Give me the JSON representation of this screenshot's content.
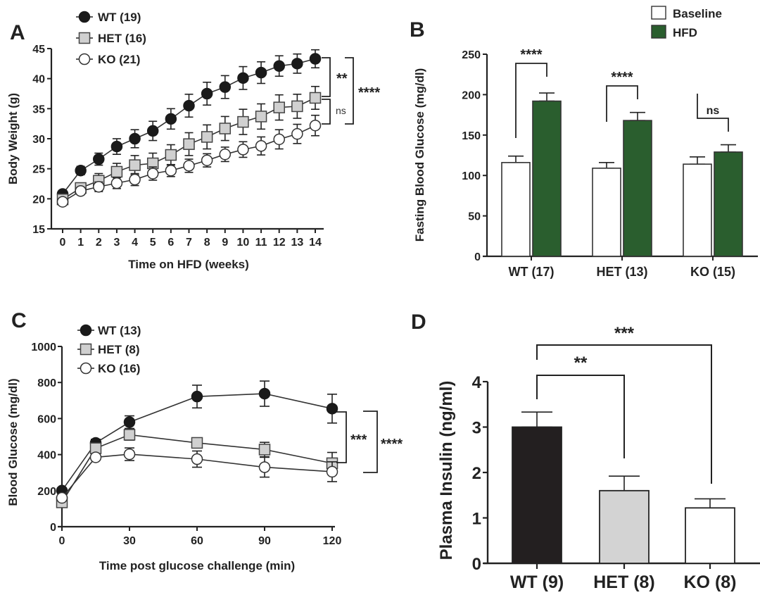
{
  "chart_data": [
    {
      "panel": "A",
      "type": "line",
      "title": "",
      "xlabel": "Time on HFD (weeks)",
      "ylabel": "Body Weight (g)",
      "xlim": [
        0,
        14
      ],
      "ylim": [
        15,
        45
      ],
      "xticks": [
        "0",
        "1",
        "2",
        "3",
        "4",
        "5",
        "6",
        "7",
        "8",
        "9",
        "10",
        "11",
        "12",
        "13",
        "14"
      ],
      "yticks": [
        "15",
        "20",
        "25",
        "30",
        "35",
        "40",
        "45"
      ],
      "x": [
        0,
        1,
        2,
        3,
        4,
        5,
        6,
        7,
        8,
        9,
        10,
        11,
        12,
        13,
        14
      ],
      "legend_position": "top-left",
      "series": [
        {
          "name": "WT (19)",
          "marker": "filled-circle",
          "values": [
            20.8,
            24.7,
            26.6,
            28.7,
            30.0,
            31.3,
            33.3,
            35.5,
            37.5,
            38.6,
            40.1,
            41.0,
            42.1,
            42.5,
            43.3
          ],
          "errors": [
            0.6,
            0.7,
            1.0,
            1.3,
            1.5,
            1.6,
            1.7,
            1.9,
            1.9,
            1.9,
            1.9,
            1.8,
            1.7,
            1.6,
            1.5
          ]
        },
        {
          "name": "HET (16)",
          "marker": "gray-square",
          "values": [
            19.9,
            21.8,
            23.0,
            24.5,
            25.6,
            25.9,
            27.3,
            29.1,
            30.3,
            31.7,
            32.8,
            33.7,
            35.2,
            35.4,
            36.8
          ],
          "errors": [
            0.5,
            0.8,
            1.2,
            1.4,
            1.6,
            1.7,
            1.7,
            1.9,
            2.0,
            2.0,
            2.1,
            2.1,
            2.1,
            2.0,
            1.9
          ]
        },
        {
          "name": "KO (21)",
          "marker": "open-circle",
          "values": [
            19.5,
            21.3,
            22.0,
            22.6,
            23.2,
            24.2,
            24.7,
            25.5,
            26.4,
            27.4,
            28.2,
            28.8,
            29.9,
            30.8,
            32.2
          ],
          "errors": [
            0.5,
            0.6,
            0.8,
            0.9,
            1.0,
            1.1,
            1.0,
            1.1,
            1.1,
            1.2,
            1.3,
            1.5,
            1.6,
            1.6,
            1.7
          ]
        }
      ],
      "annotations": [
        {
          "text": "**",
          "between": [
            "WT (19)",
            "HET (16)"
          ]
        },
        {
          "text": "ns",
          "between": [
            "HET (16)",
            "KO (21)"
          ]
        },
        {
          "text": "****",
          "between": [
            "WT (19)",
            "KO (21)"
          ]
        }
      ]
    },
    {
      "panel": "B",
      "type": "bar",
      "title": "",
      "xlabel": "",
      "ylabel": "Fasting Blood Glucose (mg/dl)",
      "ylim": [
        0,
        250
      ],
      "yticks": [
        "0",
        "50",
        "100",
        "150",
        "200",
        "250"
      ],
      "categories": [
        "WT (17)",
        "HET (13)",
        "KO (15)"
      ],
      "legend_position": "top-right",
      "series": [
        {
          "name": "Baseline",
          "color": "#ffffff",
          "values": [
            116,
            109,
            114
          ],
          "errors": [
            8,
            7,
            9
          ]
        },
        {
          "name": "HFD",
          "color": "#2a5e2e",
          "values": [
            192,
            168,
            129
          ],
          "errors": [
            10,
            10,
            9
          ]
        }
      ],
      "annotations": [
        {
          "text": "****",
          "category": "WT (17)"
        },
        {
          "text": "****",
          "category": "HET (13)"
        },
        {
          "text": "ns",
          "category": "KO (15)"
        }
      ]
    },
    {
      "panel": "C",
      "type": "line",
      "title": "",
      "xlabel": "Time post glucose challenge (min)",
      "ylabel": "Blood Glucose (mg/dl)",
      "xlim": [
        0,
        120
      ],
      "ylim": [
        0,
        1000
      ],
      "xticks": [
        "0",
        "30",
        "60",
        "90",
        "120"
      ],
      "yticks": [
        "0",
        "200",
        "400",
        "600",
        "800",
        "1000"
      ],
      "x": [
        0,
        15,
        30,
        60,
        90,
        120
      ],
      "legend_position": "top-left",
      "series": [
        {
          "name": "WT (13)",
          "marker": "filled-circle",
          "values": [
            200,
            465,
            580,
            722,
            738,
            655
          ],
          "errors": [
            15,
            20,
            35,
            63,
            70,
            80
          ]
        },
        {
          "name": "HET (8)",
          "marker": "gray-square",
          "values": [
            135,
            435,
            510,
            465,
            428,
            352
          ],
          "errors": [
            10,
            20,
            30,
            25,
            40,
            60
          ]
        },
        {
          "name": "KO (16)",
          "marker": "open-circle",
          "values": [
            160,
            385,
            402,
            375,
            330,
            305
          ],
          "errors": [
            10,
            15,
            35,
            45,
            55,
            55
          ]
        }
      ],
      "annotations": [
        {
          "text": "***",
          "between": [
            "WT (13)",
            "HET (8)"
          ]
        },
        {
          "text": "****",
          "between": [
            "WT (13)",
            "KO (16)"
          ]
        }
      ]
    },
    {
      "panel": "D",
      "type": "bar",
      "title": "",
      "xlabel": "",
      "ylabel": "Plasma Insulin (ng/ml)",
      "ylim": [
        0,
        4
      ],
      "yticks": [
        "0",
        "1",
        "2",
        "3",
        "4"
      ],
      "categories": [
        "WT (9)",
        "HET (8)",
        "KO (8)"
      ],
      "series": [
        {
          "name": "Plasma Insulin",
          "colors": [
            "#231f20",
            "#d3d3d3",
            "#ffffff"
          ],
          "values": [
            3.0,
            1.6,
            1.22
          ],
          "errors": [
            0.33,
            0.32,
            0.2
          ]
        }
      ],
      "annotations": [
        {
          "text": "**",
          "between": [
            "WT (9)",
            "HET (8)"
          ]
        },
        {
          "text": "***",
          "between": [
            "WT (9)",
            "KO (8)"
          ]
        }
      ]
    }
  ],
  "panels": {
    "A": {
      "letter": "A"
    },
    "B": {
      "letter": "B"
    },
    "C": {
      "letter": "C"
    },
    "D": {
      "letter": "D"
    }
  },
  "colors": {
    "axis": "#222222",
    "hfd_green": "#2a5e2e",
    "het_gray": "#d0d0d0",
    "wt_black": "#231f20"
  }
}
